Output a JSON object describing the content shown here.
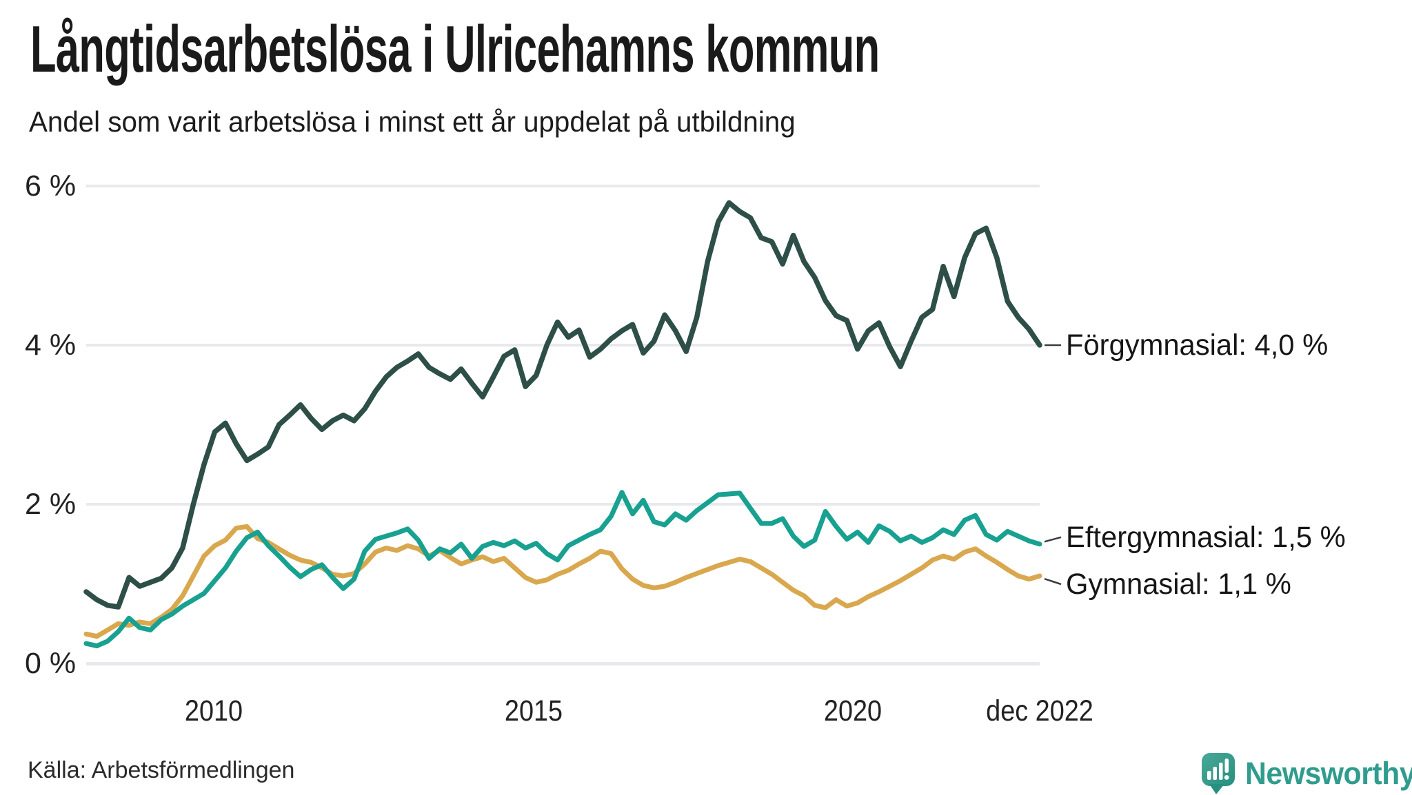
{
  "header": {
    "title": "Långtidsarbetslösa i Ulricehamns kommun",
    "subtitle": "Andel som varit arbetslösa i minst ett år uppdelat på utbildning"
  },
  "chart_data": {
    "type": "line",
    "title": "Långtidsarbetslösa i Ulricehamns kommun",
    "subtitle": "Andel som varit arbetslösa i minst ett år uppdelat på utbildning",
    "unit": "%",
    "x_range_years": [
      2008.0,
      2022.92
    ],
    "ylim": [
      0,
      6
    ],
    "grid": true,
    "legend_position": "line-end-labels-right",
    "yticks": [
      {
        "value": 6,
        "label": "6 %"
      },
      {
        "value": 4,
        "label": "4 %"
      },
      {
        "value": 2,
        "label": "2 %"
      },
      {
        "value": 0,
        "label": "0 %"
      }
    ],
    "xticks": [
      {
        "year": 2010,
        "label": "2010"
      },
      {
        "year": 2015,
        "label": "2015"
      },
      {
        "year": 2020,
        "label": "2020"
      },
      {
        "year": 2022.92,
        "label": "dec 2022"
      }
    ],
    "series": [
      {
        "name": "Förgymnasial",
        "end_label": "Förgymnasial: 4,0 %",
        "end_value": 4.0,
        "color": "#2d4f47",
        "values": [
          0.9,
          0.8,
          0.73,
          0.71,
          1.08,
          0.97,
          1.02,
          1.07,
          1.2,
          1.45,
          2.0,
          2.5,
          2.91,
          3.02,
          2.76,
          2.55,
          2.63,
          2.72,
          3.0,
          3.12,
          3.25,
          3.08,
          2.94,
          3.05,
          3.12,
          3.05,
          3.2,
          3.42,
          3.6,
          3.72,
          3.8,
          3.89,
          3.72,
          3.64,
          3.57,
          3.7,
          3.52,
          3.35,
          3.6,
          3.86,
          3.94,
          3.48,
          3.62,
          4.0,
          4.29,
          4.1,
          4.19,
          3.85,
          3.95,
          4.08,
          4.18,
          4.26,
          3.9,
          4.05,
          4.38,
          4.18,
          3.92,
          4.35,
          5.05,
          5.55,
          5.79,
          5.68,
          5.6,
          5.35,
          5.3,
          5.02,
          5.38,
          5.05,
          4.85,
          4.56,
          4.37,
          4.31,
          3.95,
          4.18,
          4.28,
          3.98,
          3.73,
          4.05,
          4.35,
          4.45,
          4.99,
          4.61,
          5.1,
          5.4,
          5.47,
          5.1,
          4.55,
          4.35,
          4.2,
          4.0
        ]
      },
      {
        "name": "Eftergymnasial",
        "end_label": "Eftergymnasial: 1,5 %",
        "end_value": 1.5,
        "color": "#18a191",
        "values": [
          0.25,
          0.22,
          0.28,
          0.4,
          0.57,
          0.45,
          0.42,
          0.55,
          0.62,
          0.72,
          0.8,
          0.88,
          1.04,
          1.2,
          1.41,
          1.58,
          1.65,
          1.48,
          1.35,
          1.21,
          1.09,
          1.18,
          1.24,
          1.08,
          0.94,
          1.06,
          1.41,
          1.56,
          1.6,
          1.64,
          1.69,
          1.55,
          1.32,
          1.44,
          1.39,
          1.5,
          1.32,
          1.47,
          1.52,
          1.48,
          1.54,
          1.45,
          1.51,
          1.38,
          1.3,
          1.48,
          1.55,
          1.62,
          1.68,
          1.85,
          2.15,
          1.88,
          2.05,
          1.78,
          1.74,
          1.88,
          1.8,
          1.92,
          2.02,
          2.12,
          2.13,
          2.14,
          1.95,
          1.76,
          1.76,
          1.82,
          1.6,
          1.47,
          1.55,
          1.91,
          1.72,
          1.56,
          1.65,
          1.52,
          1.73,
          1.66,
          1.54,
          1.6,
          1.52,
          1.58,
          1.68,
          1.62,
          1.8,
          1.86,
          1.62,
          1.55,
          1.66,
          1.6,
          1.54,
          1.5
        ]
      },
      {
        "name": "Gymnasial",
        "end_label": "Gymnasial: 1,1 %",
        "end_value": 1.1,
        "color": "#d9a84e",
        "values": [
          0.37,
          0.34,
          0.42,
          0.5,
          0.48,
          0.52,
          0.5,
          0.58,
          0.68,
          0.85,
          1.1,
          1.35,
          1.48,
          1.55,
          1.7,
          1.72,
          1.57,
          1.52,
          1.44,
          1.36,
          1.3,
          1.27,
          1.2,
          1.12,
          1.1,
          1.13,
          1.25,
          1.4,
          1.45,
          1.42,
          1.48,
          1.44,
          1.35,
          1.42,
          1.33,
          1.25,
          1.3,
          1.34,
          1.28,
          1.32,
          1.2,
          1.08,
          1.02,
          1.05,
          1.12,
          1.17,
          1.25,
          1.32,
          1.41,
          1.38,
          1.19,
          1.06,
          0.98,
          0.95,
          0.97,
          1.02,
          1.08,
          1.13,
          1.18,
          1.23,
          1.27,
          1.31,
          1.28,
          1.2,
          1.12,
          1.02,
          0.92,
          0.85,
          0.73,
          0.7,
          0.8,
          0.72,
          0.76,
          0.84,
          0.9,
          0.97,
          1.04,
          1.12,
          1.2,
          1.3,
          1.35,
          1.31,
          1.4,
          1.44,
          1.35,
          1.27,
          1.18,
          1.1,
          1.06,
          1.1
        ]
      }
    ]
  },
  "footer": {
    "source": "Källa: Arbetsförmedlingen",
    "brand": "Newsworthy"
  },
  "colors": {
    "background": "#ffffff",
    "grid": "#e9e9ed",
    "text": "#1a1a1a",
    "leader": "#3c3c3c",
    "brand_teal": "#2f9c8e",
    "logo_gradient_start": "#48a898",
    "logo_gradient_end": "#27907f"
  }
}
